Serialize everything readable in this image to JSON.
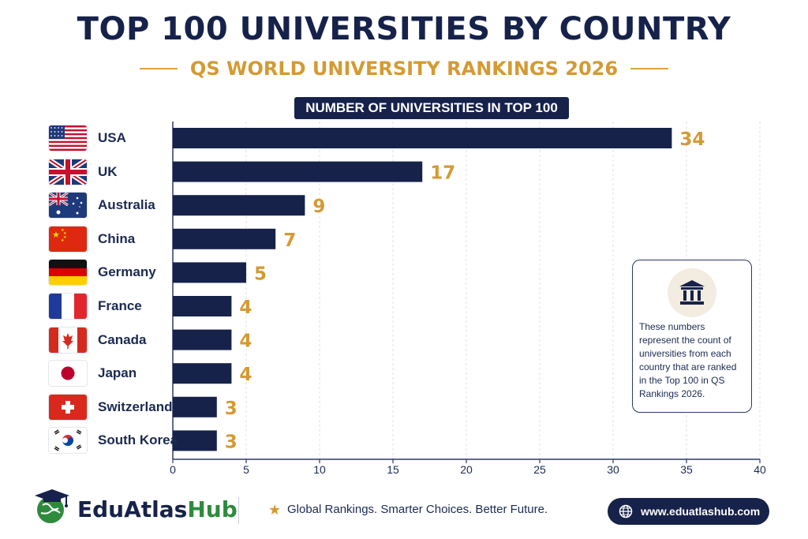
{
  "header": {
    "title": "TOP 100 UNIVERSITIES BY COUNTRY",
    "subtitle": "QS WORLD UNIVERSITY RANKINGS 2026"
  },
  "chart_data": {
    "type": "bar",
    "orientation": "horizontal",
    "title": "NUMBER OF UNIVERSITIES IN TOP 100",
    "categories": [
      "USA",
      "UK",
      "Australia",
      "China",
      "Germany",
      "France",
      "Canada",
      "Japan",
      "Switzerland",
      "South Korea"
    ],
    "values": [
      34,
      17,
      9,
      7,
      5,
      4,
      4,
      4,
      3,
      3
    ],
    "data_labels": [
      "34",
      "17",
      "9",
      "7",
      "5",
      "4",
      "4",
      "4",
      "3",
      "3"
    ],
    "xlim": [
      0,
      40
    ],
    "xticks": [
      0,
      5,
      10,
      15,
      20,
      25,
      30,
      35,
      40
    ],
    "xtick_labels": [
      "0",
      "5",
      "10",
      "15",
      "20",
      "25",
      "30",
      "35",
      "40"
    ],
    "grid": "vertical dashed",
    "bar_color": "#16224a",
    "label_color": "#d49a32"
  },
  "flags": [
    "us-flag",
    "uk-flag",
    "australia-flag",
    "china-flag",
    "germany-flag",
    "france-flag",
    "canada-flag",
    "japan-flag",
    "switzerland-flag",
    "south-korea-flag"
  ],
  "note": {
    "icon": "institution-icon",
    "text": "These numbers represent the count of universities from each country that are ranked in the Top 100 in QS Rankings 2026."
  },
  "footer": {
    "brand_part1": "EduAtlas",
    "brand_part2": "Hub",
    "logo_icon": "graduation-globe-icon",
    "tagline": "Global Rankings. Smarter Choices. Better Future.",
    "star_icon": "star-icon",
    "url": "www.eduatlashub.com",
    "url_icon": "globe-icon"
  },
  "colors": {
    "navy": "#16224a",
    "gold": "#d49a32",
    "green": "#2e8b3d"
  }
}
